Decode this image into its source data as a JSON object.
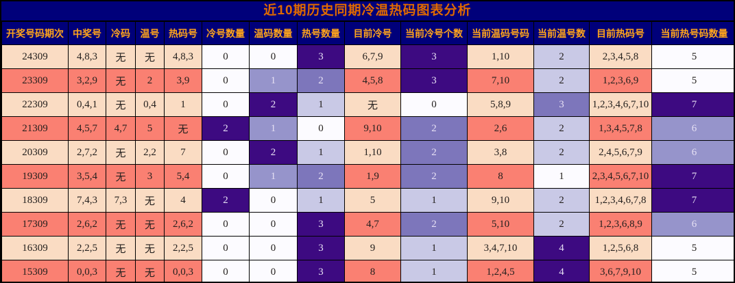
{
  "title": "近10期历史同期冷温热码图表分析",
  "colors": {
    "navy_bg": "#00007A",
    "title_text": "#E06A00",
    "header_text": "#FFA41C",
    "row_peach": "#FADCC3",
    "row_salmon": "#FA8072",
    "scale_white": "#FCFBFF",
    "scale_light": "#C9C9E6",
    "scale_medium": "#9694CB",
    "scale_medium_dark": "#7D76BB",
    "scale_dark": "#3D0A81",
    "dark_text": "#24201E",
    "light_text": "#E6E0F4",
    "border": "#000000"
  },
  "chart_data": {
    "type": "table",
    "title": "近10期历史同期冷温热码图表分析",
    "columns": [
      "开奖号码期次",
      "中奖号",
      "冷码",
      "温号",
      "热码号",
      "冷号数量",
      "温码数量",
      "热号数量",
      "目前冷号",
      "当前冷号个数",
      "当前温码号码",
      "当前温号数",
      "目前热码号",
      "当前热号码数量"
    ],
    "rows": [
      {
        "shade": "peach",
        "cells": [
          {
            "t": "24309",
            "c": "base"
          },
          {
            "t": "4,8,3",
            "c": "base"
          },
          {
            "t": "无",
            "c": "base"
          },
          {
            "t": "无",
            "c": "base"
          },
          {
            "t": "4,8,3",
            "c": "base"
          },
          {
            "t": "0",
            "c": "p0"
          },
          {
            "t": "0",
            "c": "p0"
          },
          {
            "t": "3",
            "c": "p4"
          },
          {
            "t": "6,7,9",
            "c": "base"
          },
          {
            "t": "3",
            "c": "p4"
          },
          {
            "t": "1,10",
            "c": "base"
          },
          {
            "t": "2",
            "c": "p1"
          },
          {
            "t": "2,3,4,5,8",
            "c": "base"
          },
          {
            "t": "5",
            "c": "p0"
          }
        ]
      },
      {
        "shade": "salmon",
        "cells": [
          {
            "t": "23309",
            "c": "base"
          },
          {
            "t": "3,2,9",
            "c": "base"
          },
          {
            "t": "无",
            "c": "base"
          },
          {
            "t": "2",
            "c": "base"
          },
          {
            "t": "3,9",
            "c": "base"
          },
          {
            "t": "0",
            "c": "p0"
          },
          {
            "t": "1",
            "c": "p2"
          },
          {
            "t": "2",
            "c": "p3"
          },
          {
            "t": "4,5,8",
            "c": "base"
          },
          {
            "t": "3",
            "c": "p4"
          },
          {
            "t": "7,10",
            "c": "base"
          },
          {
            "t": "2",
            "c": "p1"
          },
          {
            "t": "1,2,3,6,9",
            "c": "base"
          },
          {
            "t": "5",
            "c": "p0"
          }
        ]
      },
      {
        "shade": "peach",
        "cells": [
          {
            "t": "22309",
            "c": "base"
          },
          {
            "t": "0,4,1",
            "c": "base"
          },
          {
            "t": "无",
            "c": "base"
          },
          {
            "t": "0,4",
            "c": "base"
          },
          {
            "t": "1",
            "c": "base"
          },
          {
            "t": "0",
            "c": "p0"
          },
          {
            "t": "2",
            "c": "p4"
          },
          {
            "t": "1",
            "c": "p1"
          },
          {
            "t": "无",
            "c": "base"
          },
          {
            "t": "0",
            "c": "p0"
          },
          {
            "t": "5,8,9",
            "c": "base"
          },
          {
            "t": "3",
            "c": "p3"
          },
          {
            "t": "1,2,3,4,6,7,10",
            "c": "base"
          },
          {
            "t": "7",
            "c": "p4"
          }
        ]
      },
      {
        "shade": "salmon",
        "cells": [
          {
            "t": "21309",
            "c": "base"
          },
          {
            "t": "4,5,7",
            "c": "base"
          },
          {
            "t": "4,7",
            "c": "base"
          },
          {
            "t": "5",
            "c": "base"
          },
          {
            "t": "无",
            "c": "base"
          },
          {
            "t": "2",
            "c": "p4"
          },
          {
            "t": "1",
            "c": "p2"
          },
          {
            "t": "0",
            "c": "p0"
          },
          {
            "t": "9,10",
            "c": "base"
          },
          {
            "t": "2",
            "c": "p3"
          },
          {
            "t": "2,6",
            "c": "base"
          },
          {
            "t": "2",
            "c": "p1"
          },
          {
            "t": "1,3,4,5,7,8",
            "c": "base"
          },
          {
            "t": "6",
            "c": "p2"
          }
        ]
      },
      {
        "shade": "peach",
        "cells": [
          {
            "t": "20309",
            "c": "base"
          },
          {
            "t": "2,7,2",
            "c": "base"
          },
          {
            "t": "无",
            "c": "base"
          },
          {
            "t": "2,2",
            "c": "base"
          },
          {
            "t": "7",
            "c": "base"
          },
          {
            "t": "0",
            "c": "p0"
          },
          {
            "t": "2",
            "c": "p4"
          },
          {
            "t": "1",
            "c": "p1"
          },
          {
            "t": "1,10",
            "c": "base"
          },
          {
            "t": "2",
            "c": "p3"
          },
          {
            "t": "3,8",
            "c": "base"
          },
          {
            "t": "2",
            "c": "p1"
          },
          {
            "t": "2,4,5,6,7,9",
            "c": "base"
          },
          {
            "t": "6",
            "c": "p2"
          }
        ]
      },
      {
        "shade": "salmon",
        "cells": [
          {
            "t": "19309",
            "c": "base"
          },
          {
            "t": "3,5,4",
            "c": "base"
          },
          {
            "t": "无",
            "c": "base"
          },
          {
            "t": "3",
            "c": "base"
          },
          {
            "t": "5,4",
            "c": "base"
          },
          {
            "t": "0",
            "c": "p0"
          },
          {
            "t": "1",
            "c": "p2"
          },
          {
            "t": "2",
            "c": "p3"
          },
          {
            "t": "1,9",
            "c": "base"
          },
          {
            "t": "2",
            "c": "p3"
          },
          {
            "t": "8",
            "c": "base"
          },
          {
            "t": "1",
            "c": "p0"
          },
          {
            "t": "2,3,4,5,6,7,10",
            "c": "base"
          },
          {
            "t": "7",
            "c": "p4"
          }
        ]
      },
      {
        "shade": "peach",
        "cells": [
          {
            "t": "18309",
            "c": "base"
          },
          {
            "t": "7,4,3",
            "c": "base"
          },
          {
            "t": "7,3",
            "c": "base"
          },
          {
            "t": "无",
            "c": "base"
          },
          {
            "t": "4",
            "c": "base"
          },
          {
            "t": "2",
            "c": "p4"
          },
          {
            "t": "0",
            "c": "p0"
          },
          {
            "t": "1",
            "c": "p1"
          },
          {
            "t": "5",
            "c": "base"
          },
          {
            "t": "1",
            "c": "p1"
          },
          {
            "t": "9,10",
            "c": "base"
          },
          {
            "t": "2",
            "c": "p1"
          },
          {
            "t": "1,2,3,4,6,7,8",
            "c": "base"
          },
          {
            "t": "7",
            "c": "p4"
          }
        ]
      },
      {
        "shade": "salmon",
        "cells": [
          {
            "t": "17309",
            "c": "base"
          },
          {
            "t": "2,6,2",
            "c": "base"
          },
          {
            "t": "无",
            "c": "base"
          },
          {
            "t": "无",
            "c": "base"
          },
          {
            "t": "2,6,2",
            "c": "base"
          },
          {
            "t": "0",
            "c": "p0"
          },
          {
            "t": "0",
            "c": "p0"
          },
          {
            "t": "3",
            "c": "p4"
          },
          {
            "t": "4,7",
            "c": "base"
          },
          {
            "t": "2",
            "c": "p3"
          },
          {
            "t": "5,10",
            "c": "base"
          },
          {
            "t": "2",
            "c": "p1"
          },
          {
            "t": "1,2,3,6,8,9",
            "c": "base"
          },
          {
            "t": "6",
            "c": "p2"
          }
        ]
      },
      {
        "shade": "peach",
        "cells": [
          {
            "t": "16309",
            "c": "base"
          },
          {
            "t": "2,2,5",
            "c": "base"
          },
          {
            "t": "无",
            "c": "base"
          },
          {
            "t": "无",
            "c": "base"
          },
          {
            "t": "2,2,5",
            "c": "base"
          },
          {
            "t": "0",
            "c": "p0"
          },
          {
            "t": "0",
            "c": "p0"
          },
          {
            "t": "3",
            "c": "p4"
          },
          {
            "t": "9",
            "c": "base"
          },
          {
            "t": "1",
            "c": "p1"
          },
          {
            "t": "3,4,7,10",
            "c": "base"
          },
          {
            "t": "4",
            "c": "p4"
          },
          {
            "t": "1,2,5,6,8",
            "c": "base"
          },
          {
            "t": "5",
            "c": "p0"
          }
        ]
      },
      {
        "shade": "salmon",
        "cells": [
          {
            "t": "15309",
            "c": "base"
          },
          {
            "t": "0,0,3",
            "c": "base"
          },
          {
            "t": "无",
            "c": "base"
          },
          {
            "t": "无",
            "c": "base"
          },
          {
            "t": "0,0,3",
            "c": "base"
          },
          {
            "t": "0",
            "c": "p0"
          },
          {
            "t": "0",
            "c": "p0"
          },
          {
            "t": "3",
            "c": "p4"
          },
          {
            "t": "8",
            "c": "base"
          },
          {
            "t": "1",
            "c": "p1"
          },
          {
            "t": "1,2,4,5",
            "c": "base"
          },
          {
            "t": "4",
            "c": "p4"
          },
          {
            "t": "3,6,7,9,10",
            "c": "base"
          },
          {
            "t": "5",
            "c": "p0"
          }
        ]
      }
    ]
  }
}
